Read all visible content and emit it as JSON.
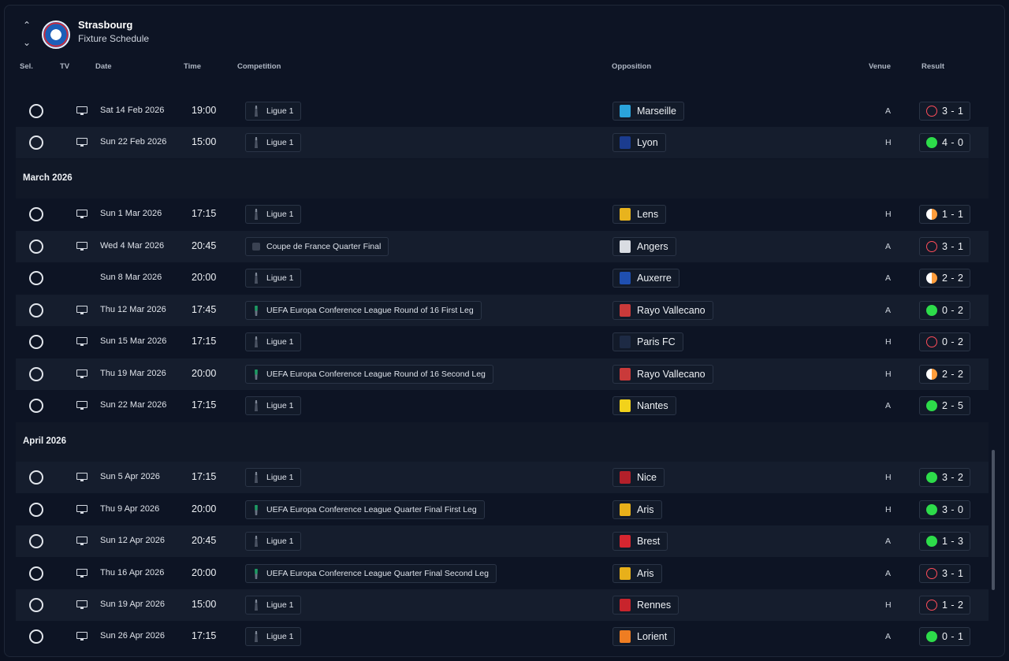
{
  "header": {
    "club_name": "Strasbourg",
    "subtitle": "Fixture Schedule"
  },
  "columns": {
    "sel": "Sel.",
    "tv": "TV",
    "date": "Date",
    "time": "Time",
    "competition": "Competition",
    "opposition": "Opposition",
    "venue": "Venue",
    "result": "Result"
  },
  "months": {
    "march": "March 2026",
    "april": "April 2026"
  },
  "rows": [
    {
      "tv": true,
      "date": "Sat 14 Feb 2026",
      "time": "19:00",
      "competition": "Ligue 1",
      "comp_logo": "ligue1",
      "opponent": "Marseille",
      "opp_color": "#2aa4dc",
      "venue": "A",
      "outcome": "loss",
      "score": "3 - 1"
    },
    {
      "tv": true,
      "date": "Sun 22 Feb 2026",
      "time": "15:00",
      "competition": "Ligue 1",
      "comp_logo": "ligue1",
      "opponent": "Lyon",
      "opp_color": "#1b3c8f",
      "venue": "H",
      "outcome": "win",
      "score": "4 - 0"
    },
    {
      "tv": true,
      "date": "Sun 1 Mar 2026",
      "time": "17:15",
      "competition": "Ligue 1",
      "comp_logo": "ligue1",
      "opponent": "Lens",
      "opp_color": "#e8b31d",
      "venue": "H",
      "outcome": "draw",
      "score": "1 - 1"
    },
    {
      "tv": true,
      "date": "Wed 4 Mar 2026",
      "time": "20:45",
      "competition": "Coupe de France Quarter Final",
      "comp_logo": "cdf",
      "opponent": "Angers",
      "opp_color": "#d9dce2",
      "venue": "A",
      "outcome": "loss",
      "score": "3 - 1"
    },
    {
      "tv": false,
      "date": "Sun 8 Mar 2026",
      "time": "20:00",
      "competition": "Ligue 1",
      "comp_logo": "ligue1",
      "opponent": "Auxerre",
      "opp_color": "#1f4fb0",
      "venue": "A",
      "outcome": "draw",
      "score": "2 - 2"
    },
    {
      "tv": true,
      "date": "Thu 12 Mar 2026",
      "time": "17:45",
      "competition": "UEFA Europa Conference League Round of 16  First Leg",
      "comp_logo": "uecl",
      "opponent": "Rayo Vallecano",
      "opp_color": "#c93a3a",
      "venue": "A",
      "outcome": "win",
      "score": "0 - 2"
    },
    {
      "tv": true,
      "date": "Sun 15 Mar 2026",
      "time": "17:15",
      "competition": "Ligue 1",
      "comp_logo": "ligue1",
      "opponent": "Paris FC",
      "opp_color": "#1d2a44",
      "venue": "H",
      "outcome": "loss",
      "score": "0 - 2"
    },
    {
      "tv": true,
      "date": "Thu 19 Mar 2026",
      "time": "20:00",
      "competition": "UEFA Europa Conference League Round of 16  Second Leg",
      "comp_logo": "uecl",
      "opponent": "Rayo Vallecano",
      "opp_color": "#c93a3a",
      "venue": "H",
      "outcome": "draw",
      "score": "2 - 2"
    },
    {
      "tv": true,
      "date": "Sun 22 Mar 2026",
      "time": "17:15",
      "competition": "Ligue 1",
      "comp_logo": "ligue1",
      "opponent": "Nantes",
      "opp_color": "#f2d21b",
      "venue": "A",
      "outcome": "win",
      "score": "2 - 5"
    },
    {
      "tv": true,
      "date": "Sun 5 Apr 2026",
      "time": "17:15",
      "competition": "Ligue 1",
      "comp_logo": "ligue1",
      "opponent": "Nice",
      "opp_color": "#b3202a",
      "venue": "H",
      "outcome": "win",
      "score": "3 - 2"
    },
    {
      "tv": true,
      "date": "Thu 9 Apr 2026",
      "time": "20:00",
      "competition": "UEFA Europa Conference League Quarter Final First Leg",
      "comp_logo": "uecl",
      "opponent": "Aris",
      "opp_color": "#e8b01a",
      "venue": "H",
      "outcome": "win",
      "score": "3 - 0"
    },
    {
      "tv": true,
      "date": "Sun 12 Apr 2026",
      "time": "20:45",
      "competition": "Ligue 1",
      "comp_logo": "ligue1",
      "opponent": "Brest",
      "opp_color": "#d62630",
      "venue": "A",
      "outcome": "win",
      "score": "1 - 3"
    },
    {
      "tv": true,
      "date": "Thu 16 Apr 2026",
      "time": "20:00",
      "competition": "UEFA Europa Conference League Quarter Final Second Leg",
      "comp_logo": "uecl",
      "opponent": "Aris",
      "opp_color": "#e8b01a",
      "venue": "A",
      "outcome": "loss",
      "score": "3 - 1"
    },
    {
      "tv": true,
      "date": "Sun 19 Apr 2026",
      "time": "15:00",
      "competition": "Ligue 1",
      "comp_logo": "ligue1",
      "opponent": "Rennes",
      "opp_color": "#c8242c",
      "venue": "H",
      "outcome": "loss",
      "score": "1 - 2"
    },
    {
      "tv": true,
      "date": "Sun 26 Apr 2026",
      "time": "17:15",
      "competition": "Ligue 1",
      "comp_logo": "ligue1",
      "opponent": "Lorient",
      "opp_color": "#ef7d22",
      "venue": "A",
      "outcome": "win",
      "score": "0 - 1"
    }
  ]
}
